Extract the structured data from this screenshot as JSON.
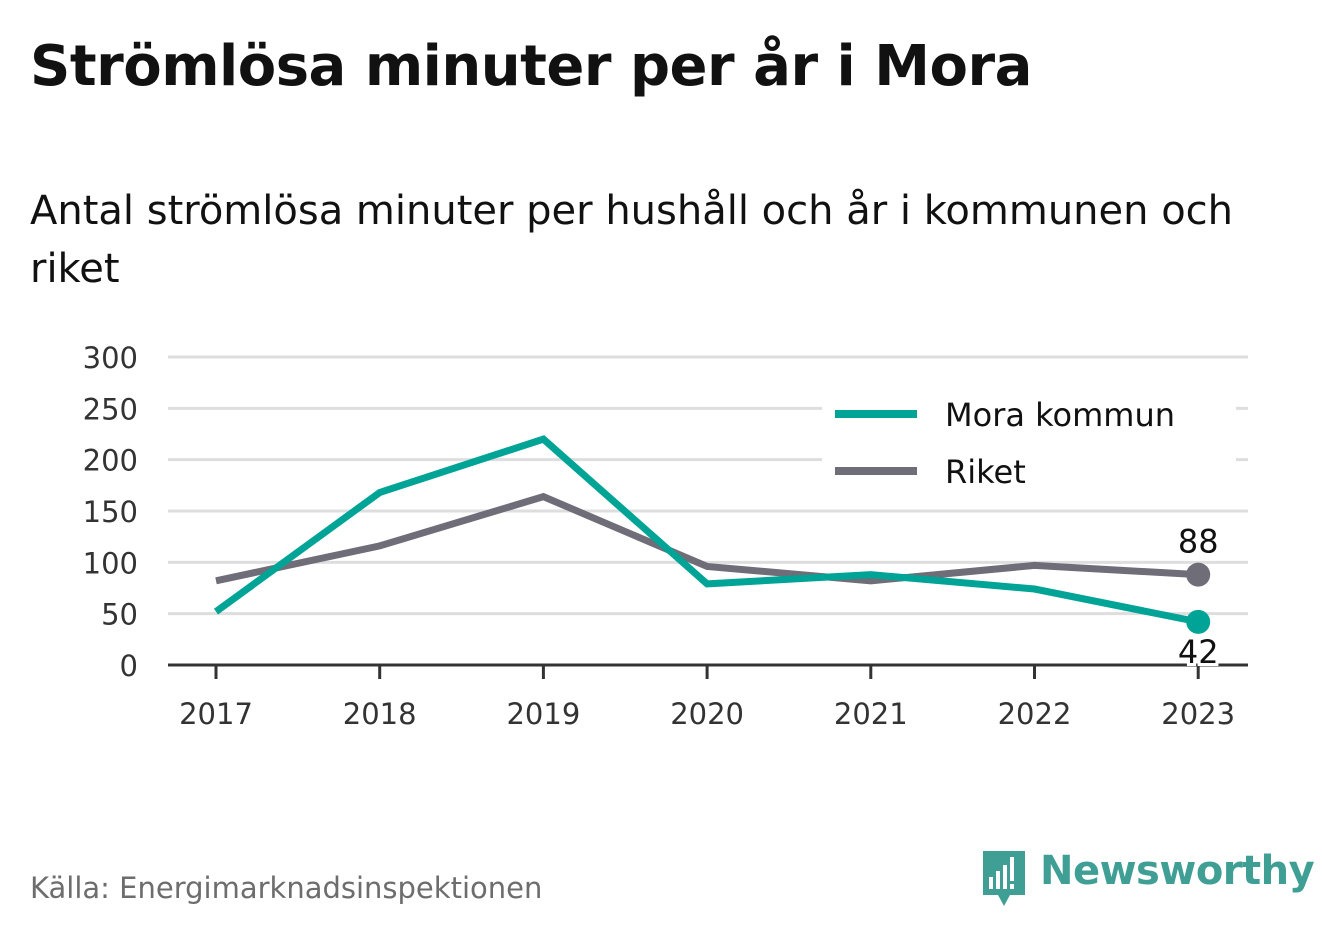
{
  "header": {
    "title": "Strömlösa minuter per år i Mora",
    "subtitle": "Antal strömlösa minuter per hushåll och år i kommunen och riket"
  },
  "footer": {
    "source": "Källa: Energimarknadsinspektionen",
    "brand_name": "Newsworthy",
    "brand_icon": "newsworthy-logo-icon"
  },
  "colors": {
    "mora": "#00a497",
    "riket": "#6e6d78",
    "grid": "#dedede",
    "axis": "#333333",
    "brand": "#3f9f95"
  },
  "chart_data": {
    "type": "line",
    "title": "Strömlösa minuter per år i Mora",
    "subtitle": "Antal strömlösa minuter per hushåll och år i kommunen och riket",
    "xlabel": "",
    "ylabel": "",
    "categories": [
      "2017",
      "2018",
      "2019",
      "2020",
      "2021",
      "2022",
      "2023"
    ],
    "ylim": [
      0,
      300
    ],
    "yticks": [
      "0",
      "50",
      "100",
      "150",
      "200",
      "250",
      "300"
    ],
    "grid": true,
    "legend_position": "top-right",
    "series": [
      {
        "name": "Mora kommun",
        "color": "#00a497",
        "values": [
          52,
          168,
          220,
          79,
          88,
          74,
          42
        ],
        "end_label": "42"
      },
      {
        "name": "Riket",
        "color": "#6e6d78",
        "values": [
          82,
          116,
          164,
          96,
          82,
          97,
          88
        ],
        "end_label": "88"
      }
    ]
  }
}
